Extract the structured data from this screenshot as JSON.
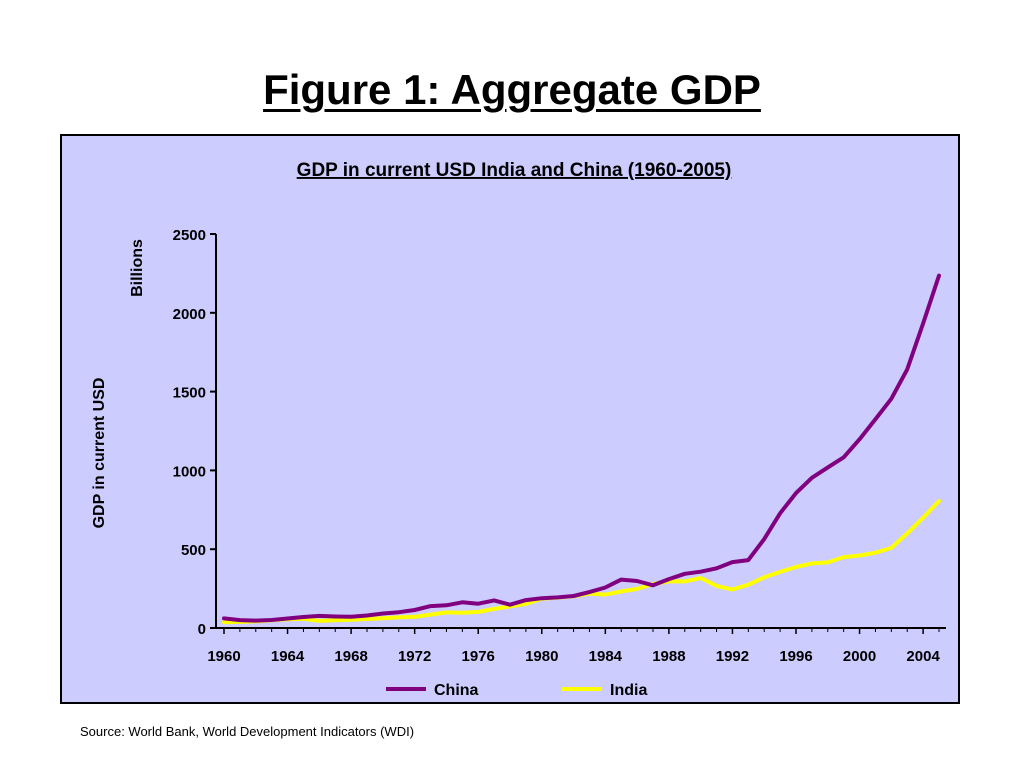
{
  "slide": {
    "title": "Figure 1: Aggregate GDP",
    "source": "Source: World Bank, World Development Indicators (WDI)"
  },
  "colors": {
    "plot_background": "#ccccff",
    "china": "#800080",
    "india": "#ffff00"
  },
  "chart_data": {
    "type": "line",
    "title": "GDP in current USD India and China (1960-2005)",
    "ylabel": "GDP in current USD",
    "yunit": "Billions",
    "xlabel": "",
    "ylim": [
      0,
      2500
    ],
    "yticks": [
      0,
      500,
      1000,
      1500,
      2000,
      2500
    ],
    "xlim": [
      1960,
      2005
    ],
    "xticks": [
      1960,
      1964,
      1968,
      1972,
      1976,
      1980,
      1984,
      1988,
      1992,
      1996,
      2000,
      2004
    ],
    "grid": false,
    "legend_position": "bottom",
    "x": [
      1960,
      1961,
      1962,
      1963,
      1964,
      1965,
      1966,
      1967,
      1968,
      1969,
      1970,
      1971,
      1972,
      1973,
      1974,
      1975,
      1976,
      1977,
      1978,
      1979,
      1980,
      1981,
      1982,
      1983,
      1984,
      1985,
      1986,
      1987,
      1988,
      1989,
      1990,
      1991,
      1992,
      1993,
      1994,
      1995,
      1996,
      1997,
      1998,
      1999,
      2000,
      2001,
      2002,
      2003,
      2004,
      2005
    ],
    "series": [
      {
        "name": "China",
        "color": "#800080",
        "values": [
          61,
          50,
          47,
          51,
          60,
          70,
          77,
          73,
          71,
          79,
          92,
          100,
          114,
          139,
          144,
          163,
          154,
          175,
          148,
          177,
          189,
          194,
          203,
          228,
          257,
          307,
          298,
          271,
          310,
          344,
          357,
          379,
          418,
          431,
          564,
          728,
          856,
          953,
          1019,
          1083,
          1198,
          1325,
          1454,
          1641,
          1932,
          2236
        ]
      },
      {
        "name": "India",
        "color": "#ffff00",
        "values": [
          37,
          39,
          42,
          49,
          56,
          58,
          45,
          49,
          52,
          57,
          62,
          67,
          71,
          85,
          99,
          97,
          102,
          121,
          137,
          153,
          186,
          193,
          201,
          218,
          212,
          232,
          248,
          279,
          296,
          296,
          317,
          267,
          244,
          275,
          322,
          356,
          387,
          410,
          416,
          450,
          460,
          478,
          508,
          600,
          700,
          805
        ]
      }
    ]
  }
}
